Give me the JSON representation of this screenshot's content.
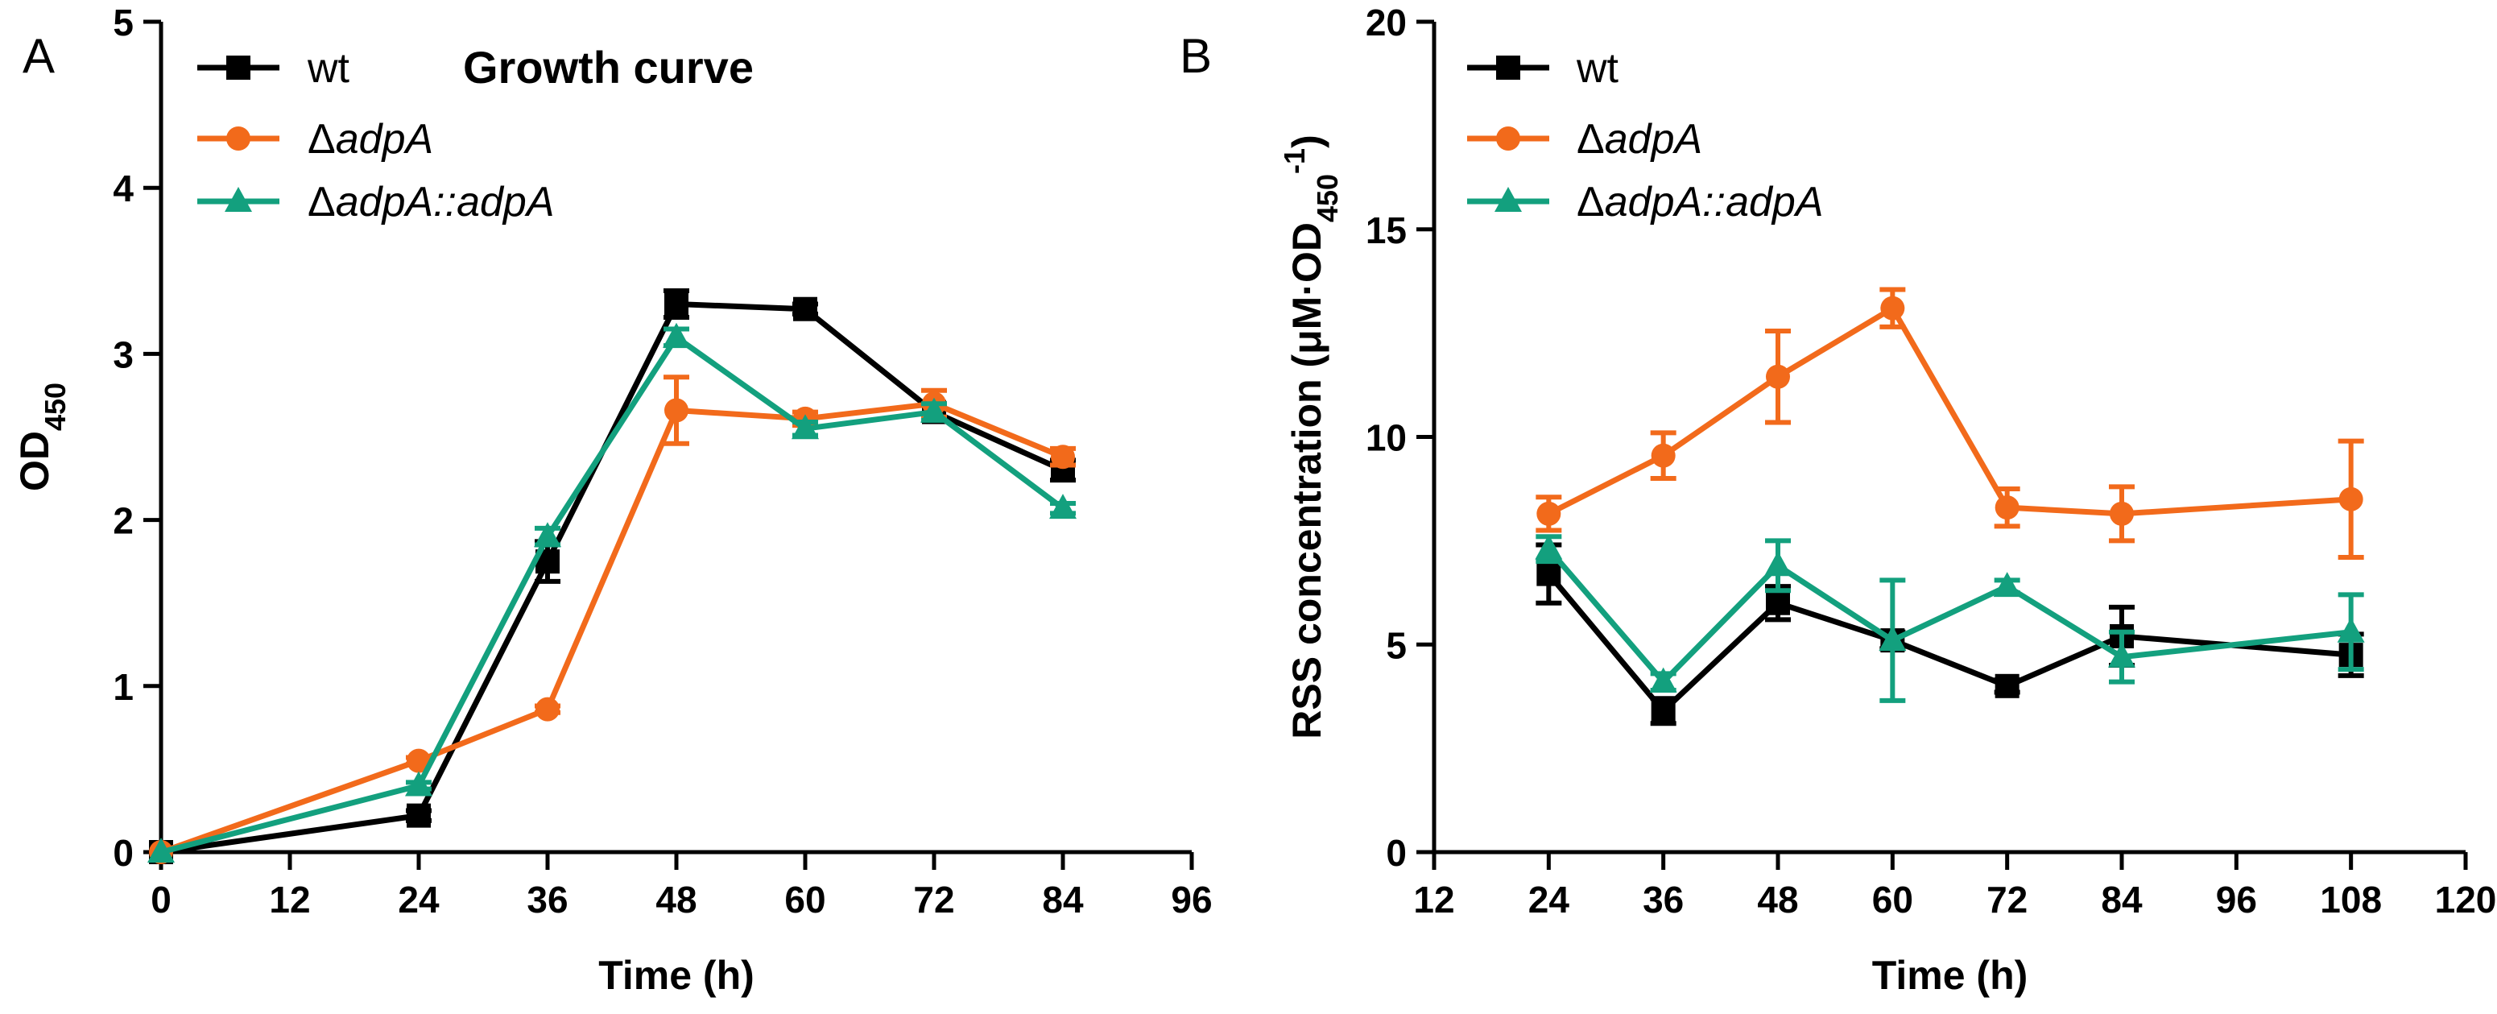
{
  "colors": {
    "wt": "#000000",
    "dadpA": "#f26a1b",
    "comp": "#13a07e"
  },
  "chart_data": [
    {
      "type": "line",
      "panel": "A",
      "title": "Growth curve",
      "xlabel": "Time (h)",
      "ylabel_main": "OD",
      "ylabel_sub": "450",
      "xlim": [
        0,
        96
      ],
      "ylim": [
        0,
        5
      ],
      "xticks": [
        "0",
        "12",
        "24",
        "36",
        "48",
        "60",
        "72",
        "84",
        "96"
      ],
      "yticks": [
        "0",
        "1",
        "2",
        "3",
        "4",
        "5"
      ],
      "legend_position": "top-left",
      "series": [
        {
          "key": "wt",
          "name": "wt",
          "italic": false,
          "marker": "square",
          "x": [
            0,
            24,
            36,
            48,
            60,
            72,
            84
          ],
          "y": [
            0,
            0.22,
            1.75,
            3.3,
            3.27,
            2.65,
            2.3
          ],
          "err": [
            0,
            0.03,
            0.12,
            0.08,
            0.03,
            0.05,
            0.06
          ]
        },
        {
          "key": "dadpA",
          "name": "ΔadpA",
          "italic": true,
          "marker": "circle",
          "x": [
            0,
            24,
            36,
            48,
            60,
            72,
            84
          ],
          "y": [
            0,
            0.55,
            0.86,
            2.66,
            2.61,
            2.7,
            2.38
          ],
          "err": [
            0,
            0.02,
            0.02,
            0.2,
            0.04,
            0.08,
            0.05
          ]
        },
        {
          "key": "comp",
          "name": "ΔadpA::adpA",
          "italic": true,
          "marker": "triangle",
          "x": [
            0,
            24,
            36,
            48,
            60,
            72,
            84
          ],
          "y": [
            0,
            0.4,
            1.9,
            3.1,
            2.55,
            2.65,
            2.07
          ],
          "err": [
            0,
            0.02,
            0.05,
            0.05,
            0.04,
            0.05,
            0.03
          ]
        }
      ]
    },
    {
      "type": "line",
      "panel": "B",
      "title": "",
      "xlabel": "Time (h)",
      "ylabel_main": "RSS concentration (μM·OD",
      "ylabel_sub": "450",
      "ylabel_sup": "-1",
      "ylabel_end": ")",
      "xlim": [
        12,
        120
      ],
      "ylim": [
        0,
        20
      ],
      "xticks": [
        "12",
        "24",
        "36",
        "48",
        "60",
        "72",
        "84",
        "96",
        "108",
        "120"
      ],
      "yticks": [
        "0",
        "5",
        "10",
        "15",
        "20"
      ],
      "legend_position": "top-left",
      "series": [
        {
          "key": "wt",
          "name": "wt",
          "italic": false,
          "marker": "square",
          "x": [
            24,
            36,
            48,
            60,
            72,
            84,
            108
          ],
          "y": [
            6.7,
            3.4,
            6.0,
            5.1,
            4.0,
            5.2,
            4.75
          ],
          "err": [
            0.7,
            0.3,
            0.4,
            0.2,
            0.15,
            0.7,
            0.5
          ]
        },
        {
          "key": "dadpA",
          "name": "ΔadpA",
          "italic": true,
          "marker": "circle",
          "x": [
            24,
            36,
            48,
            60,
            72,
            84,
            108
          ],
          "y": [
            8.15,
            9.55,
            11.45,
            13.1,
            8.3,
            8.15,
            8.5
          ],
          "err": [
            0.4,
            0.55,
            1.1,
            0.45,
            0.45,
            0.65,
            1.4
          ]
        },
        {
          "key": "comp",
          "name": "ΔadpA::adpA",
          "italic": true,
          "marker": "triangle",
          "x": [
            24,
            36,
            48,
            60,
            72,
            84,
            108
          ],
          "y": [
            7.3,
            4.1,
            6.9,
            5.1,
            6.4,
            4.7,
            5.3
          ],
          "err": [
            0.3,
            0.2,
            0.6,
            1.45,
            0.15,
            0.6,
            0.9
          ]
        }
      ]
    }
  ]
}
